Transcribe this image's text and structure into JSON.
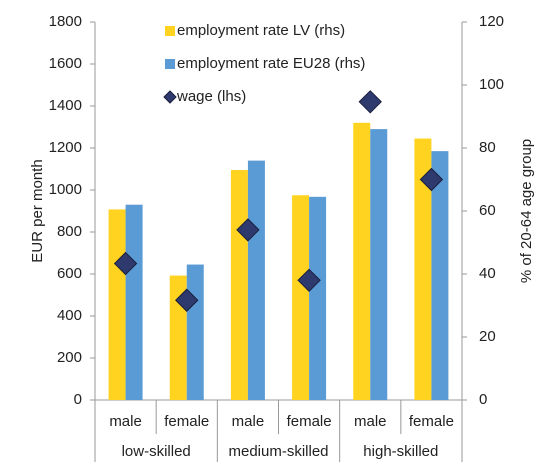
{
  "chart_data": {
    "type": "bar",
    "categories": [
      "male",
      "female",
      "male",
      "female",
      "male",
      "female"
    ],
    "groups": [
      "low-skilled",
      "medium-skilled",
      "high-skilled"
    ],
    "ylabel": "EUR per month",
    "y2label": "% of 20-64 age group",
    "ylim": [
      0,
      1800
    ],
    "yticks": [
      0,
      200,
      400,
      600,
      800,
      1000,
      1200,
      1400,
      1600,
      1800
    ],
    "y2lim": [
      0,
      120
    ],
    "y2ticks": [
      0,
      20,
      40,
      60,
      80,
      100,
      120
    ],
    "legend": "top",
    "series": [
      {
        "name": "employment rate LV (rhs)",
        "type": "bar",
        "axis": "y2",
        "color": "#FFD320",
        "values": [
          60.5,
          39.5,
          73,
          65,
          88,
          83
        ]
      },
      {
        "name": "employment rate EU28 (rhs)",
        "type": "bar",
        "axis": "y2",
        "color": "#5B9BD5",
        "values": [
          62,
          43,
          76,
          64.5,
          86,
          79
        ]
      },
      {
        "name": "wage (lhs)",
        "type": "diamond",
        "axis": "y",
        "color": "#2E3A6E",
        "values": [
          650,
          475,
          810,
          570,
          1420,
          1050
        ]
      }
    ]
  }
}
